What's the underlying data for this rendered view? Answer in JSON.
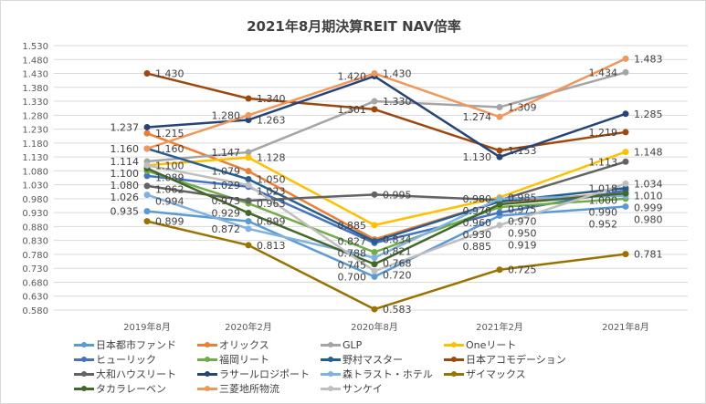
{
  "chart_data": {
    "type": "line",
    "title": "2021年8月期決算REIT  NAV倍率",
    "categories": [
      "2019年8月",
      "2020年2月",
      "2020年8月",
      "2021年2月",
      "2021年8月"
    ],
    "ylim": [
      0.58,
      1.53
    ],
    "ytick_step": 0.05,
    "grid": true,
    "legend_position": "bottom",
    "series": [
      {
        "name": "日本都市ファンド",
        "color": "#5B9BD5",
        "values": [
          0.935,
          0.899,
          0.7,
          0.919,
          0.952
        ]
      },
      {
        "name": "オリックス",
        "color": "#ED7D31",
        "values": [
          1.215,
          1.079,
          0.834,
          0.97,
          1.0
        ]
      },
      {
        "name": "GLP",
        "color": "#A5A5A5",
        "values": [
          1.114,
          1.147,
          1.33,
          1.309,
          1.434
        ]
      },
      {
        "name": "Oneリート",
        "color": "#FFC000",
        "values": [
          1.1,
          1.128,
          0.885,
          0.985,
          1.148
        ]
      },
      {
        "name": "ヒューリック",
        "color": "#4472C4",
        "values": [
          1.062,
          1.023,
          0.821,
          0.93,
          1.01
        ]
      },
      {
        "name": "福岡リート",
        "color": "#70AD47",
        "values": [
          1.08,
          0.963,
          0.788,
          0.95,
          0.98
        ]
      },
      {
        "name": "野村マスター",
        "color": "#255E91",
        "values": [
          1.16,
          1.05,
          0.827,
          0.97,
          1.018
        ]
      },
      {
        "name": "日本アコモデーション",
        "color": "#9E480E",
        "values": [
          1.43,
          1.34,
          1.301,
          1.153,
          1.219
        ]
      },
      {
        "name": "大和ハウスリート",
        "color": "#636363",
        "values": [
          1.026,
          0.973,
          0.995,
          0.975,
          1.113
        ]
      },
      {
        "name": "ラサールロジポート",
        "color": "#264478",
        "values": [
          1.237,
          1.263,
          1.42,
          1.13,
          1.285
        ]
      },
      {
        "name": "森トラスト・ホテル",
        "color": "#7FB2E0",
        "values": [
          0.994,
          0.872,
          0.768,
          0.98,
          0.99
        ]
      },
      {
        "name": "ザイマックス",
        "color": "#997300",
        "values": [
          0.899,
          0.813,
          0.583,
          0.725,
          0.781
        ]
      },
      {
        "name": "タカラレーベン",
        "color": "#43682B",
        "values": [
          1.089,
          0.929,
          0.745,
          0.96,
          0.999
        ]
      },
      {
        "name": "三菱地所物流",
        "color": "#F1975A",
        "values": [
          1.16,
          1.28,
          1.43,
          1.274,
          1.483
        ]
      },
      {
        "name": "サンケイ",
        "color": "#BFBFBF",
        "values": [
          1.1,
          1.029,
          0.72,
          0.885,
          1.034
        ]
      }
    ]
  }
}
